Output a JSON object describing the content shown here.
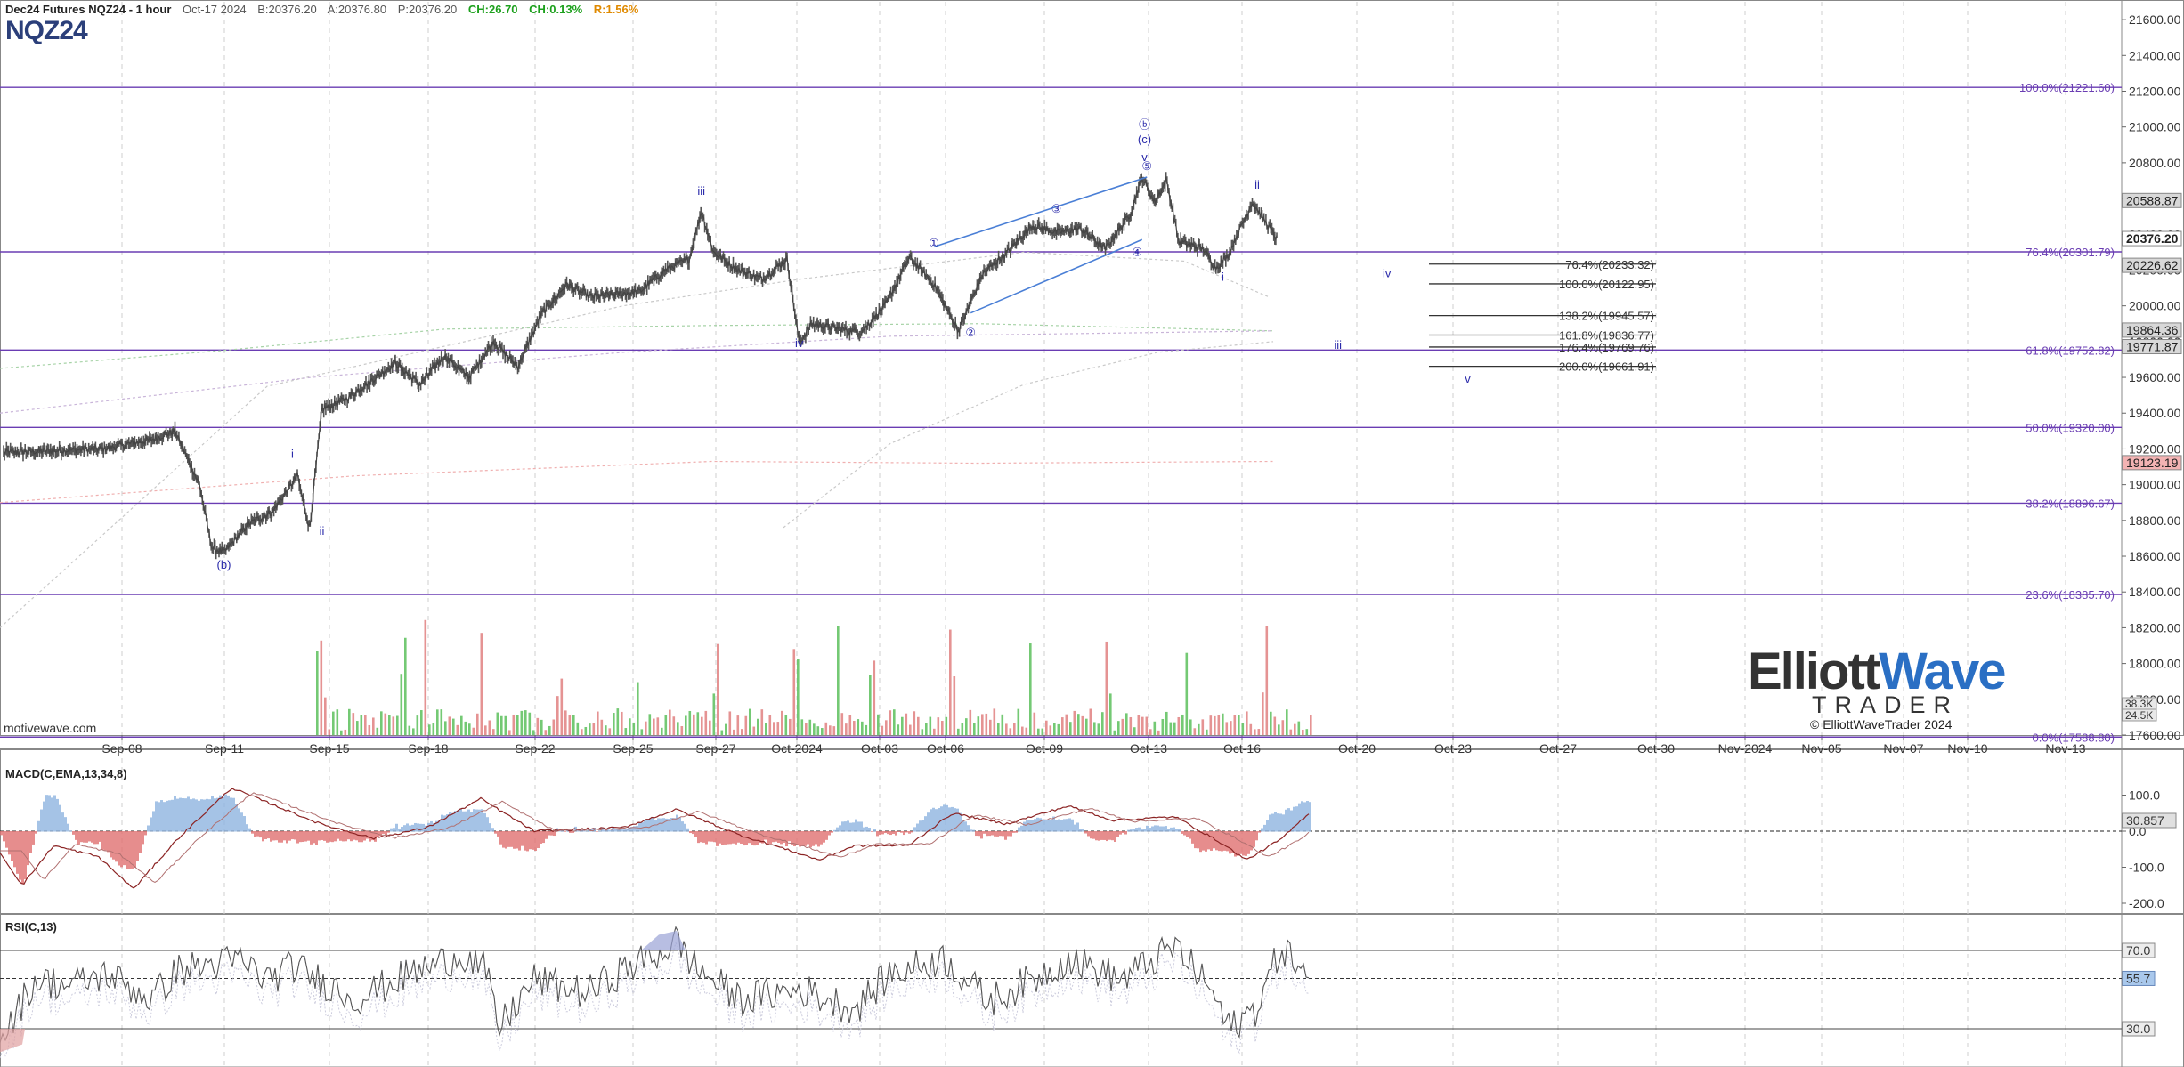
{
  "header": {
    "symbol": "Dec24 Futures NQZ24 - 1 hour",
    "date": "Oct-17 2024",
    "bid": "B:20376.20",
    "ask": "A:20376.80",
    "price": "P:20376.20",
    "change": "CH:26.70",
    "change_pct": "CH:0.13%",
    "range": "R:1.56%",
    "title": "NQZ24",
    "watermark": "motivewave.com"
  },
  "colors": {
    "price_bars": "#555555",
    "fib_lines": "#6a3db3",
    "wave_labels": "#2a2aaa",
    "trend_lines": "#4a7fd6",
    "vol_up": "#5cbf5c",
    "vol_down": "#e08080",
    "macd_line": "#8b2323",
    "macd_hist_pos": "#8fb4e0",
    "macd_hist_neg": "#e07070",
    "rsi_line": "#555555"
  },
  "logo": {
    "part1": "Elliott",
    "part2": "Wave",
    "sub": "TRADER",
    "copyright": "© ElliottWaveTrader 2024"
  },
  "macd_panel": {
    "label": "MACD(C,EMA,13,34,8)",
    "ticks": [
      "100.0",
      "0.0",
      "-100.0",
      "-200.0"
    ],
    "current": "30.857"
  },
  "rsi_panel": {
    "label": "RSI(C,13)",
    "levels": [
      "70.0",
      "30.0"
    ],
    "current": "55.7"
  },
  "chart_data": {
    "type": "line",
    "title": "Dec24 Futures NQZ24 - 1 hour",
    "x_ticks": [
      "Sep-08",
      "Sep-11",
      "Sep-15",
      "Sep-18",
      "Sep-22",
      "Sep-25",
      "Sep-27",
      "Oct-2024",
      "Oct-03",
      "Oct-06",
      "Oct-09",
      "Oct-13",
      "Oct-16",
      "Oct-20",
      "Oct-23",
      "Oct-27",
      "Oct-30",
      "Nov-2024",
      "Nov-05",
      "Nov-07",
      "Nov-10",
      "Nov-13"
    ],
    "y_ticks": [
      "21600.00",
      "21400.00",
      "21200.00",
      "21000.00",
      "20800.00",
      "20600.00",
      "20400.00",
      "20200.00",
      "20000.00",
      "19800.00",
      "19600.00",
      "19400.00",
      "19200.00",
      "19000.00",
      "18800.00",
      "18600.00",
      "18400.00",
      "18200.00",
      "18000.00",
      "17800.00",
      "17600.00"
    ],
    "ylim": [
      17600,
      21700
    ],
    "price_anchors": [
      [
        0,
        19180
      ],
      [
        4,
        19200
      ],
      [
        6,
        19250
      ],
      [
        7,
        19300
      ],
      [
        8,
        19000
      ],
      [
        8.5,
        18650
      ],
      [
        9,
        18620
      ],
      [
        10,
        18780
      ],
      [
        11,
        18850
      ],
      [
        12,
        19050
      ],
      [
        12.5,
        18750
      ],
      [
        13,
        19420
      ],
      [
        14,
        19480
      ],
      [
        15,
        19580
      ],
      [
        16,
        19680
      ],
      [
        17,
        19560
      ],
      [
        18,
        19720
      ],
      [
        19,
        19600
      ],
      [
        20,
        19800
      ],
      [
        21,
        19660
      ],
      [
        22,
        19960
      ],
      [
        23,
        20120
      ],
      [
        24,
        20050
      ],
      [
        26,
        20080
      ],
      [
        27,
        20200
      ],
      [
        28,
        20260
      ],
      [
        28.5,
        20530
      ],
      [
        29,
        20300
      ],
      [
        30,
        20200
      ],
      [
        31,
        20150
      ],
      [
        32,
        20260
      ],
      [
        32.5,
        19790
      ],
      [
        33,
        19900
      ],
      [
        35,
        19850
      ],
      [
        36,
        20000
      ],
      [
        37,
        20270
      ],
      [
        38,
        20120
      ],
      [
        39,
        19860
      ],
      [
        40,
        20180
      ],
      [
        41,
        20300
      ],
      [
        42,
        20450
      ],
      [
        43,
        20410
      ],
      [
        44,
        20430
      ],
      [
        45,
        20320
      ],
      [
        46,
        20510
      ],
      [
        46.5,
        20720
      ],
      [
        47,
        20580
      ],
      [
        47.5,
        20700
      ],
      [
        48,
        20360
      ],
      [
        49,
        20320
      ],
      [
        49.5,
        20210
      ],
      [
        50,
        20280
      ],
      [
        51,
        20580
      ],
      [
        52,
        20376
      ]
    ],
    "current_price": "20376.20",
    "right_labels": [
      {
        "price": 20588.87,
        "text": "20588.87"
      },
      {
        "price": 20376.2,
        "text": "20376.20"
      },
      {
        "price": 20226.62,
        "text": "20226.62"
      },
      {
        "price": 19864.36,
        "text": "19864.36"
      },
      {
        "price": 19771.87,
        "text": "19771.87"
      },
      {
        "price": 19123.19,
        "text": "19123.19"
      }
    ],
    "volume_labels": [
      "38.3K",
      "24.5K"
    ],
    "fib_levels": [
      {
        "price": 21221.6,
        "text": "100.0%(21221.60)"
      },
      {
        "price": 20301.79,
        "text": "76.4%(20301.79)"
      },
      {
        "price": 19752.82,
        "text": "61.8%(19752.82)"
      },
      {
        "price": 19320.0,
        "text": "50.0%(19320.00)"
      },
      {
        "price": 18896.67,
        "text": "38.2%(18896.67)"
      },
      {
        "price": 18385.7,
        "text": "23.6%(18385.70)"
      },
      {
        "price": 17588.8,
        "text": "0.0%(17588.80)"
      }
    ],
    "projection_levels": [
      {
        "price": 20233.32,
        "text": "76.4%(20233.32)"
      },
      {
        "price": 20122.95,
        "text": "100.0%(20122.95)"
      },
      {
        "price": 19945.57,
        "text": "138.2%(19945.57)"
      },
      {
        "price": 19836.77,
        "text": "161.8%(19836.77)"
      },
      {
        "price": 19769.76,
        "text": "176.4%(19769.76)"
      },
      {
        "price": 19661.91,
        "text": "200.0%(19661.91)"
      }
    ],
    "wave_labels": [
      {
        "t": 9,
        "price": 18530,
        "text": "(b)"
      },
      {
        "t": 11.8,
        "price": 19150,
        "text": "i"
      },
      {
        "t": 13,
        "price": 18720,
        "text": "ii"
      },
      {
        "t": 28.5,
        "price": 20620,
        "text": "iii"
      },
      {
        "t": 32.5,
        "price": 19770,
        "text": "iv"
      },
      {
        "t": 38,
        "price": 20330,
        "text": "①"
      },
      {
        "t": 39.5,
        "price": 19830,
        "text": "②"
      },
      {
        "t": 43,
        "price": 20520,
        "text": "③"
      },
      {
        "t": 46.3,
        "price": 20280,
        "text": "④"
      },
      {
        "t": 46.7,
        "price": 20760,
        "text": "⑤"
      },
      {
        "t": 46.6,
        "price": 20810,
        "text": "v"
      },
      {
        "t": 46.6,
        "price": 20910,
        "text": "(c)"
      },
      {
        "t": 46.6,
        "price": 20990,
        "text": "ⓑ"
      },
      {
        "t": 49.8,
        "price": 20140,
        "text": "i"
      },
      {
        "t": 51.2,
        "price": 20655,
        "text": "ii"
      },
      {
        "t": 54.5,
        "price": 19760,
        "text": "iii"
      },
      {
        "t": 56.5,
        "price": 20160,
        "text": "iv"
      },
      {
        "t": 59.8,
        "price": 19570,
        "text": "v"
      }
    ],
    "trend_lines": [
      {
        "t1": 38,
        "p1": 20330,
        "t2": 46.7,
        "p2": 20720
      },
      {
        "t1": 39.5,
        "p1": 19960,
        "t2": 46.5,
        "p2": 20370
      }
    ]
  }
}
